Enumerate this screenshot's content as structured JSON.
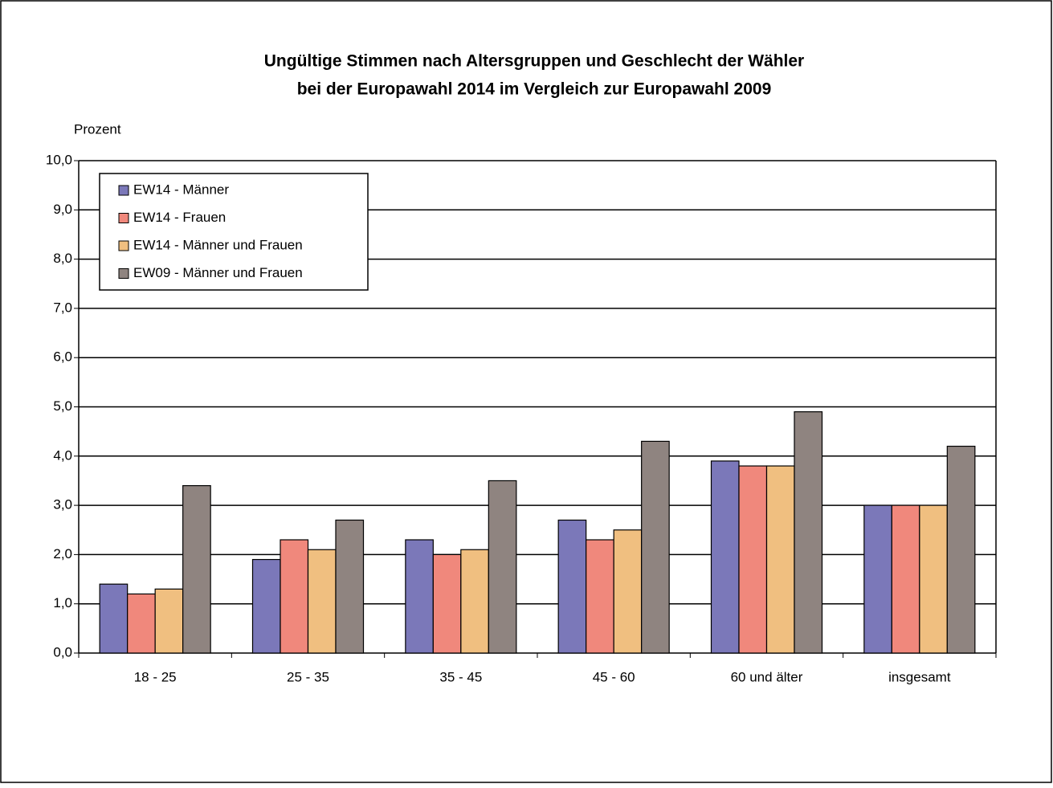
{
  "chart_data": {
    "type": "bar",
    "title": [
      "Ungültige Stimmen nach Altersgruppen und Geschlecht der Wähler",
      "bei der Europawahl 2014 im Vergleich zur Europawahl 2009"
    ],
    "y_label": "Prozent",
    "categories": [
      "18 - 25",
      "25 - 35",
      "35 - 45",
      "45 - 60",
      "60 und älter",
      "insgesamt"
    ],
    "series": [
      {
        "name": "EW14 - Männer",
        "color": "#7b78b9",
        "values": [
          1.4,
          1.9,
          2.3,
          2.7,
          3.9,
          3.0
        ]
      },
      {
        "name": "EW14 - Frauen",
        "color": "#f0887c",
        "values": [
          1.2,
          2.3,
          2.0,
          2.3,
          3.8,
          3.0
        ]
      },
      {
        "name": "EW14 - Männer und Frauen",
        "color": "#f0bf80",
        "values": [
          1.3,
          2.1,
          2.1,
          2.5,
          3.8,
          3.0
        ]
      },
      {
        "name": "EW09 - Männer und Frauen",
        "color": "#8f8480",
        "values": [
          3.4,
          2.7,
          3.5,
          4.3,
          4.9,
          4.2
        ]
      }
    ],
    "ylim": [
      0,
      10
    ],
    "yticks": [
      {
        "value": 0,
        "label": "0,0"
      },
      {
        "value": 1,
        "label": "1,0"
      },
      {
        "value": 2,
        "label": "2,0"
      },
      {
        "value": 3,
        "label": "3,0"
      },
      {
        "value": 4,
        "label": "4,0"
      },
      {
        "value": 5,
        "label": "5,0"
      },
      {
        "value": 6,
        "label": "6,0"
      },
      {
        "value": 7,
        "label": "7,0"
      },
      {
        "value": 8,
        "label": "8,0"
      },
      {
        "value": 9,
        "label": "9,0"
      },
      {
        "value": 10,
        "label": "10,0"
      }
    ],
    "grid": true,
    "legend": "upper left"
  }
}
